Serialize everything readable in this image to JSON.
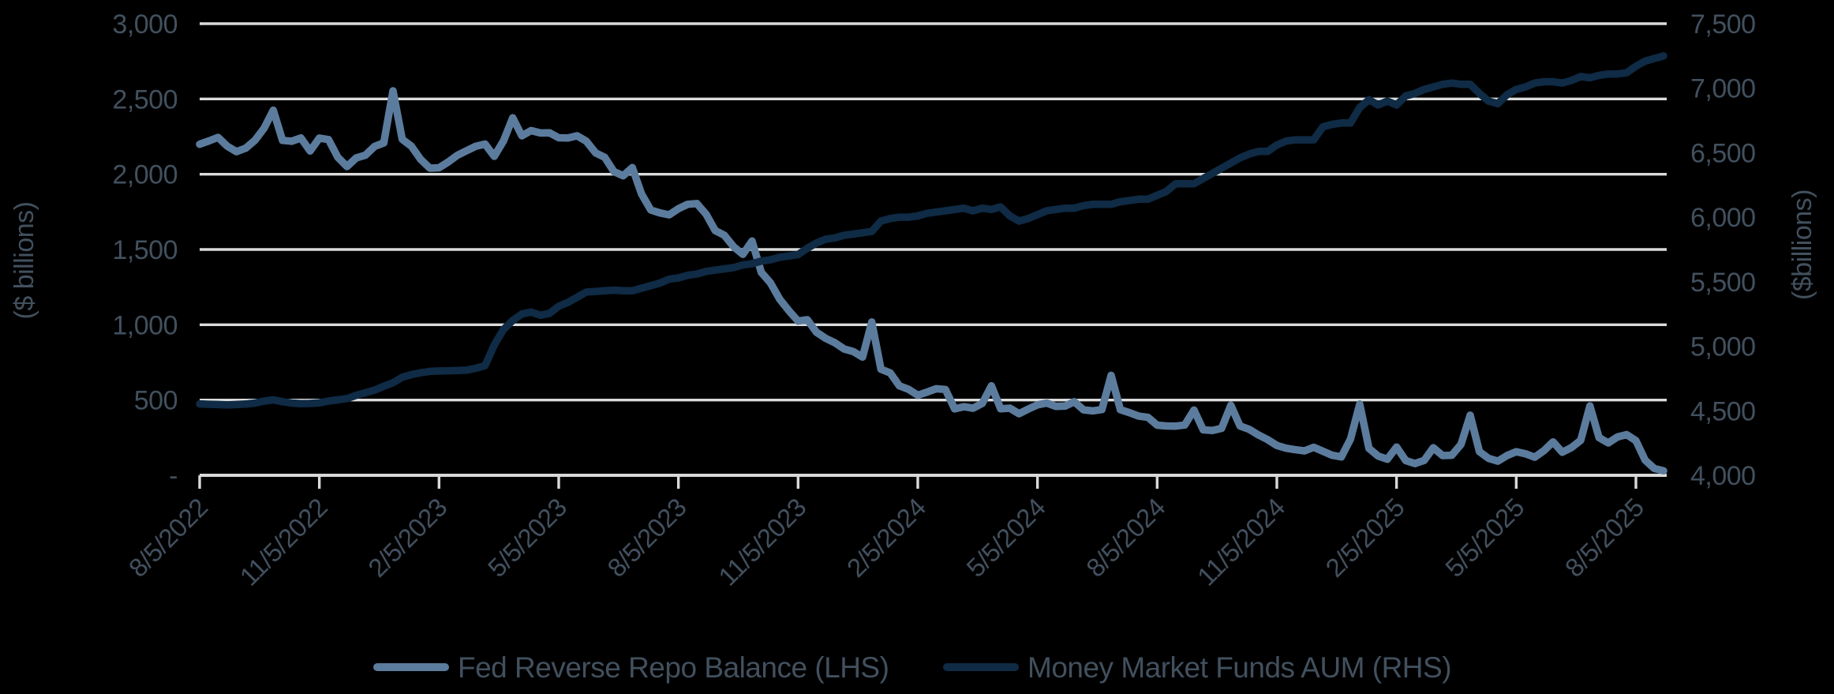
{
  "colors": {
    "background": "#000000",
    "gridline": "#DBDBDB",
    "axis_line": "#D9D9D9",
    "text": "#42505E",
    "series_light": "#5C7C9E",
    "series_dark": "#0F2B45"
  },
  "chart_data": {
    "type": "line",
    "title": "",
    "grid": true,
    "legend_position": "bottom",
    "points_per_tick": 13,
    "x_tick_labels": [
      "8/5/2022",
      "11/5/2022",
      "2/5/2023",
      "5/5/2023",
      "8/5/2023",
      "11/5/2023",
      "2/5/2024",
      "5/5/2024",
      "8/5/2024",
      "11/5/2024",
      "2/5/2025",
      "5/5/2025",
      "8/5/2025"
    ],
    "left_axis": {
      "title": "($ billions)",
      "tick_labels": [
        "3,000",
        "2,500",
        "2,000",
        "1,500",
        "1,000",
        "500",
        "-"
      ],
      "min": 0,
      "max": 3000
    },
    "right_axis": {
      "title": "($billions)",
      "tick_labels": [
        "7,500",
        "7,000",
        "6,500",
        "6,000",
        "5,500",
        "5,000",
        "4,500",
        "4,000"
      ],
      "min": 4000,
      "max": 7500
    },
    "series": [
      {
        "name": "Fed Reverse Repo Balance (LHS)",
        "axis": "left",
        "color": "#5C7C9E",
        "values": [
          2199,
          2221,
          2245,
          2186,
          2150,
          2173,
          2225,
          2306,
          2425,
          2225,
          2219,
          2241,
          2154,
          2240,
          2230,
          2113,
          2051,
          2108,
          2126,
          2185,
          2208,
          2554,
          2232,
          2186,
          2099,
          2040,
          2043,
          2081,
          2126,
          2156,
          2186,
          2200,
          2119,
          2221,
          2375,
          2255,
          2290,
          2274,
          2275,
          2242,
          2241,
          2255,
          2219,
          2142,
          2112,
          2017,
          1990,
          2044,
          1868,
          1762,
          1743,
          1730,
          1771,
          1800,
          1805,
          1735,
          1626,
          1594,
          1518,
          1468,
          1556,
          1348,
          1278,
          1170,
          1093,
          1025,
          1033,
          950,
          910,
          880,
          839,
          822,
          785,
          1018,
          705,
          680,
          594,
          571,
          532,
          553,
          575,
          570,
          441,
          456,
          446,
          478,
          594,
          442,
          446,
          409,
          440,
          468,
          480,
          458,
          460,
          489,
          435,
          428,
          437,
          664,
          436,
          416,
          393,
          385,
          333,
          328,
          327,
          334,
          433,
          302,
          298,
          312,
          465,
          328,
          305,
          268,
          237,
          198,
          180,
          170,
          162,
          186,
          160,
          133,
          122,
          240,
          473,
          179,
          128,
          107,
          188,
          98,
          78,
          99,
          183,
          131,
          133,
          205,
          399,
          157,
          112,
          94,
          131,
          157,
          143,
          120,
          163,
          222,
          153,
          184,
          232,
          461,
          250,
          215,
          255,
          270,
          230,
          100,
          45,
          30
        ]
      },
      {
        "name": "Money Market Funds AUM (RHS)",
        "axis": "right",
        "color": "#0F2B45",
        "values": [
          4553,
          4550,
          4548,
          4545,
          4548,
          4552,
          4560,
          4575,
          4585,
          4570,
          4560,
          4555,
          4557,
          4562,
          4575,
          4585,
          4595,
          4620,
          4640,
          4660,
          4690,
          4717,
          4760,
          4780,
          4795,
          4805,
          4808,
          4810,
          4812,
          4815,
          4830,
          4850,
          5010,
          5130,
          5200,
          5250,
          5265,
          5240,
          5255,
          5310,
          5340,
          5380,
          5420,
          5425,
          5430,
          5435,
          5430,
          5430,
          5450,
          5470,
          5490,
          5520,
          5530,
          5550,
          5560,
          5580,
          5590,
          5600,
          5610,
          5630,
          5640,
          5660,
          5670,
          5690,
          5700,
          5710,
          5760,
          5800,
          5830,
          5840,
          5860,
          5870,
          5880,
          5890,
          5970,
          5990,
          6000,
          6000,
          6010,
          6030,
          6040,
          6050,
          6060,
          6070,
          6050,
          6070,
          6060,
          6080,
          6010,
          5970,
          5990,
          6020,
          6050,
          6060,
          6070,
          6070,
          6090,
          6100,
          6100,
          6100,
          6120,
          6130,
          6140,
          6140,
          6170,
          6200,
          6260,
          6260,
          6260,
          6300,
          6340,
          6380,
          6420,
          6460,
          6490,
          6510,
          6510,
          6560,
          6590,
          6600,
          6600,
          6600,
          6700,
          6720,
          6730,
          6730,
          6850,
          6910,
          6870,
          6900,
          6870,
          6940,
          6960,
          6990,
          7010,
          7030,
          7040,
          7030,
          7030,
          6960,
          6900,
          6880,
          6950,
          6990,
          7010,
          7040,
          7050,
          7050,
          7040,
          7060,
          7090,
          7080,
          7100,
          7110,
          7110,
          7120,
          7170,
          7210,
          7230,
          7250
        ]
      }
    ]
  },
  "legend": {
    "item1_label": "Fed Reverse Repo Balance (LHS)",
    "item2_label": "Money Market Funds AUM (RHS)"
  }
}
